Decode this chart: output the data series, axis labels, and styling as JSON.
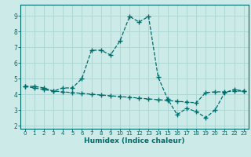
{
  "xlabel": "Humidex (Indice chaleur)",
  "x_ticks": [
    0,
    1,
    2,
    3,
    4,
    5,
    6,
    7,
    8,
    9,
    10,
    11,
    12,
    13,
    14,
    15,
    16,
    17,
    18,
    19,
    20,
    21,
    22,
    23
  ],
  "y_ticks": [
    2,
    3,
    4,
    5,
    6,
    7,
    8,
    9
  ],
  "xlim": [
    -0.5,
    23.5
  ],
  "ylim": [
    1.8,
    9.7
  ],
  "background_color": "#cceae7",
  "grid_color": "#aad4d0",
  "line_color": "#006b6b",
  "curve1_x": [
    0,
    1,
    2,
    3,
    4,
    5,
    6,
    7,
    8,
    9,
    10,
    11,
    12,
    13,
    14,
    15,
    16,
    17,
    18,
    19,
    20,
    21,
    22,
    23
  ],
  "curve1_y": [
    4.5,
    4.5,
    4.4,
    4.2,
    4.4,
    4.4,
    5.0,
    6.8,
    6.8,
    6.5,
    7.4,
    8.95,
    8.6,
    8.95,
    5.1,
    3.7,
    2.7,
    3.1,
    2.9,
    2.5,
    3.0,
    4.1,
    4.3,
    4.2
  ],
  "curve2_x": [
    0,
    1,
    2,
    3,
    4,
    5,
    6,
    7,
    8,
    9,
    10,
    11,
    12,
    13,
    14,
    15,
    16,
    17,
    18,
    19,
    20,
    21,
    22,
    23
  ],
  "curve2_y": [
    4.5,
    4.4,
    4.3,
    4.2,
    4.15,
    4.1,
    4.05,
    4.0,
    3.95,
    3.9,
    3.85,
    3.8,
    3.75,
    3.7,
    3.65,
    3.6,
    3.55,
    3.5,
    3.45,
    4.1,
    4.15,
    4.15,
    4.2,
    4.2
  ]
}
